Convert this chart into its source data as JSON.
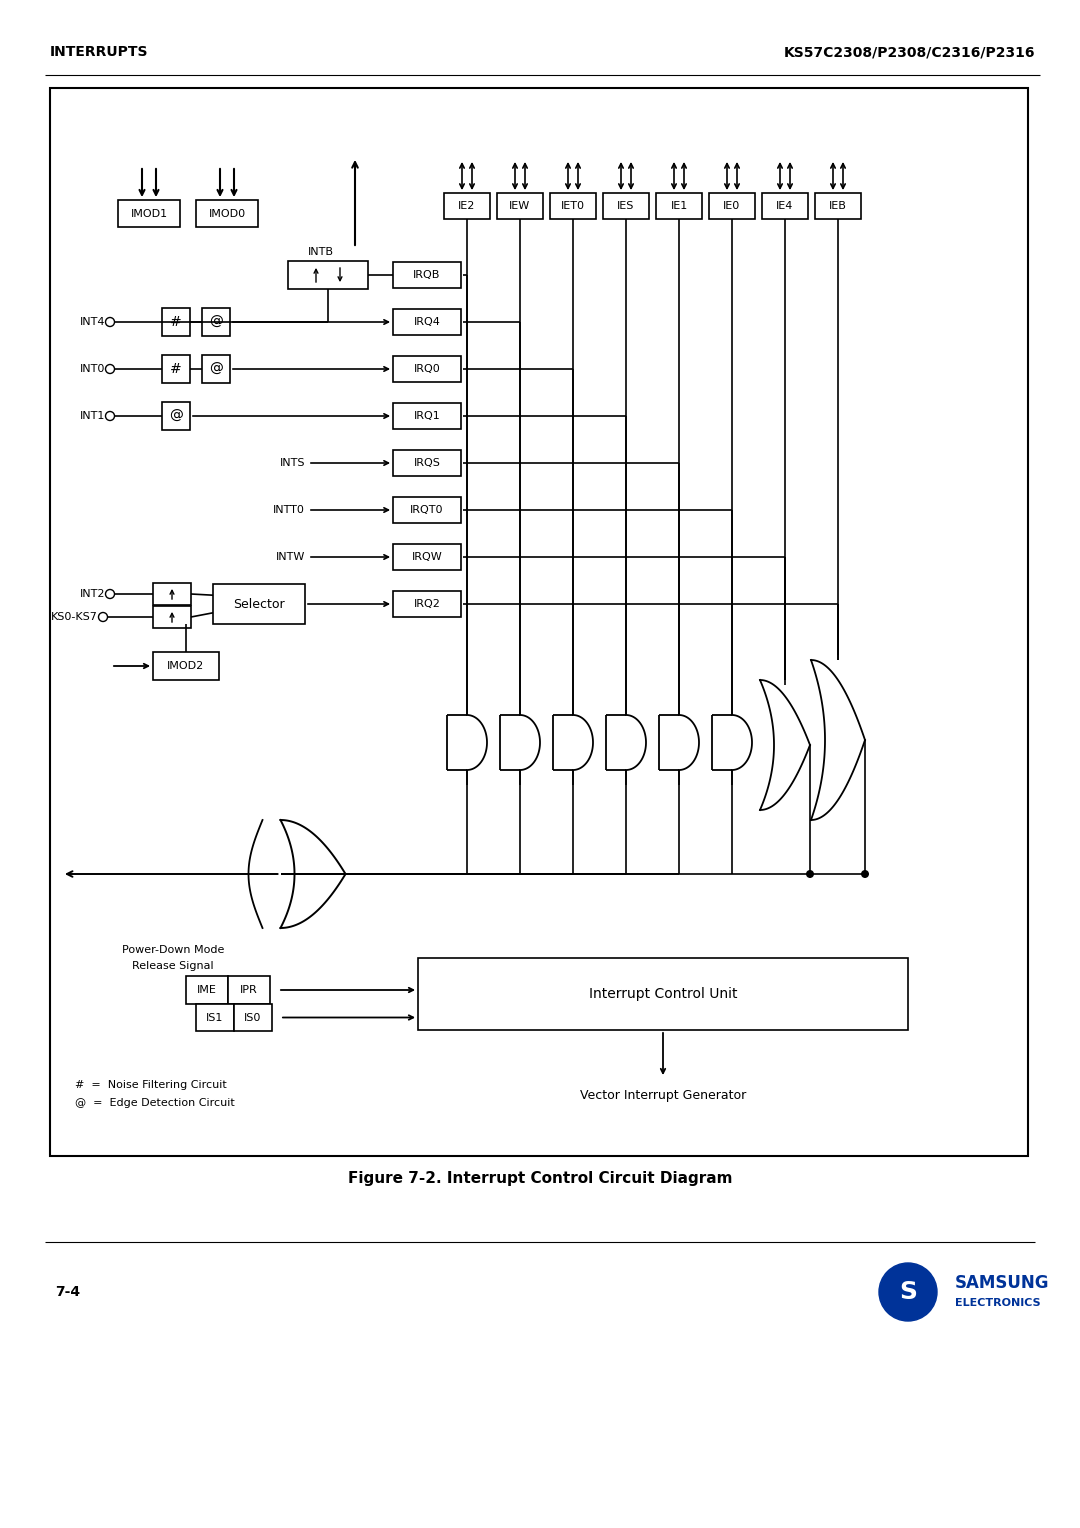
{
  "title_left": "INTERRUPTS",
  "title_right": "KS57C2308/P2308/C2316/P2316",
  "figure_caption": "Figure 7-2. Interrupt Control Circuit Diagram",
  "page_number": "7-4",
  "bg": "#ffffff",
  "black": "#000000",
  "samsung_blue": "#003399"
}
